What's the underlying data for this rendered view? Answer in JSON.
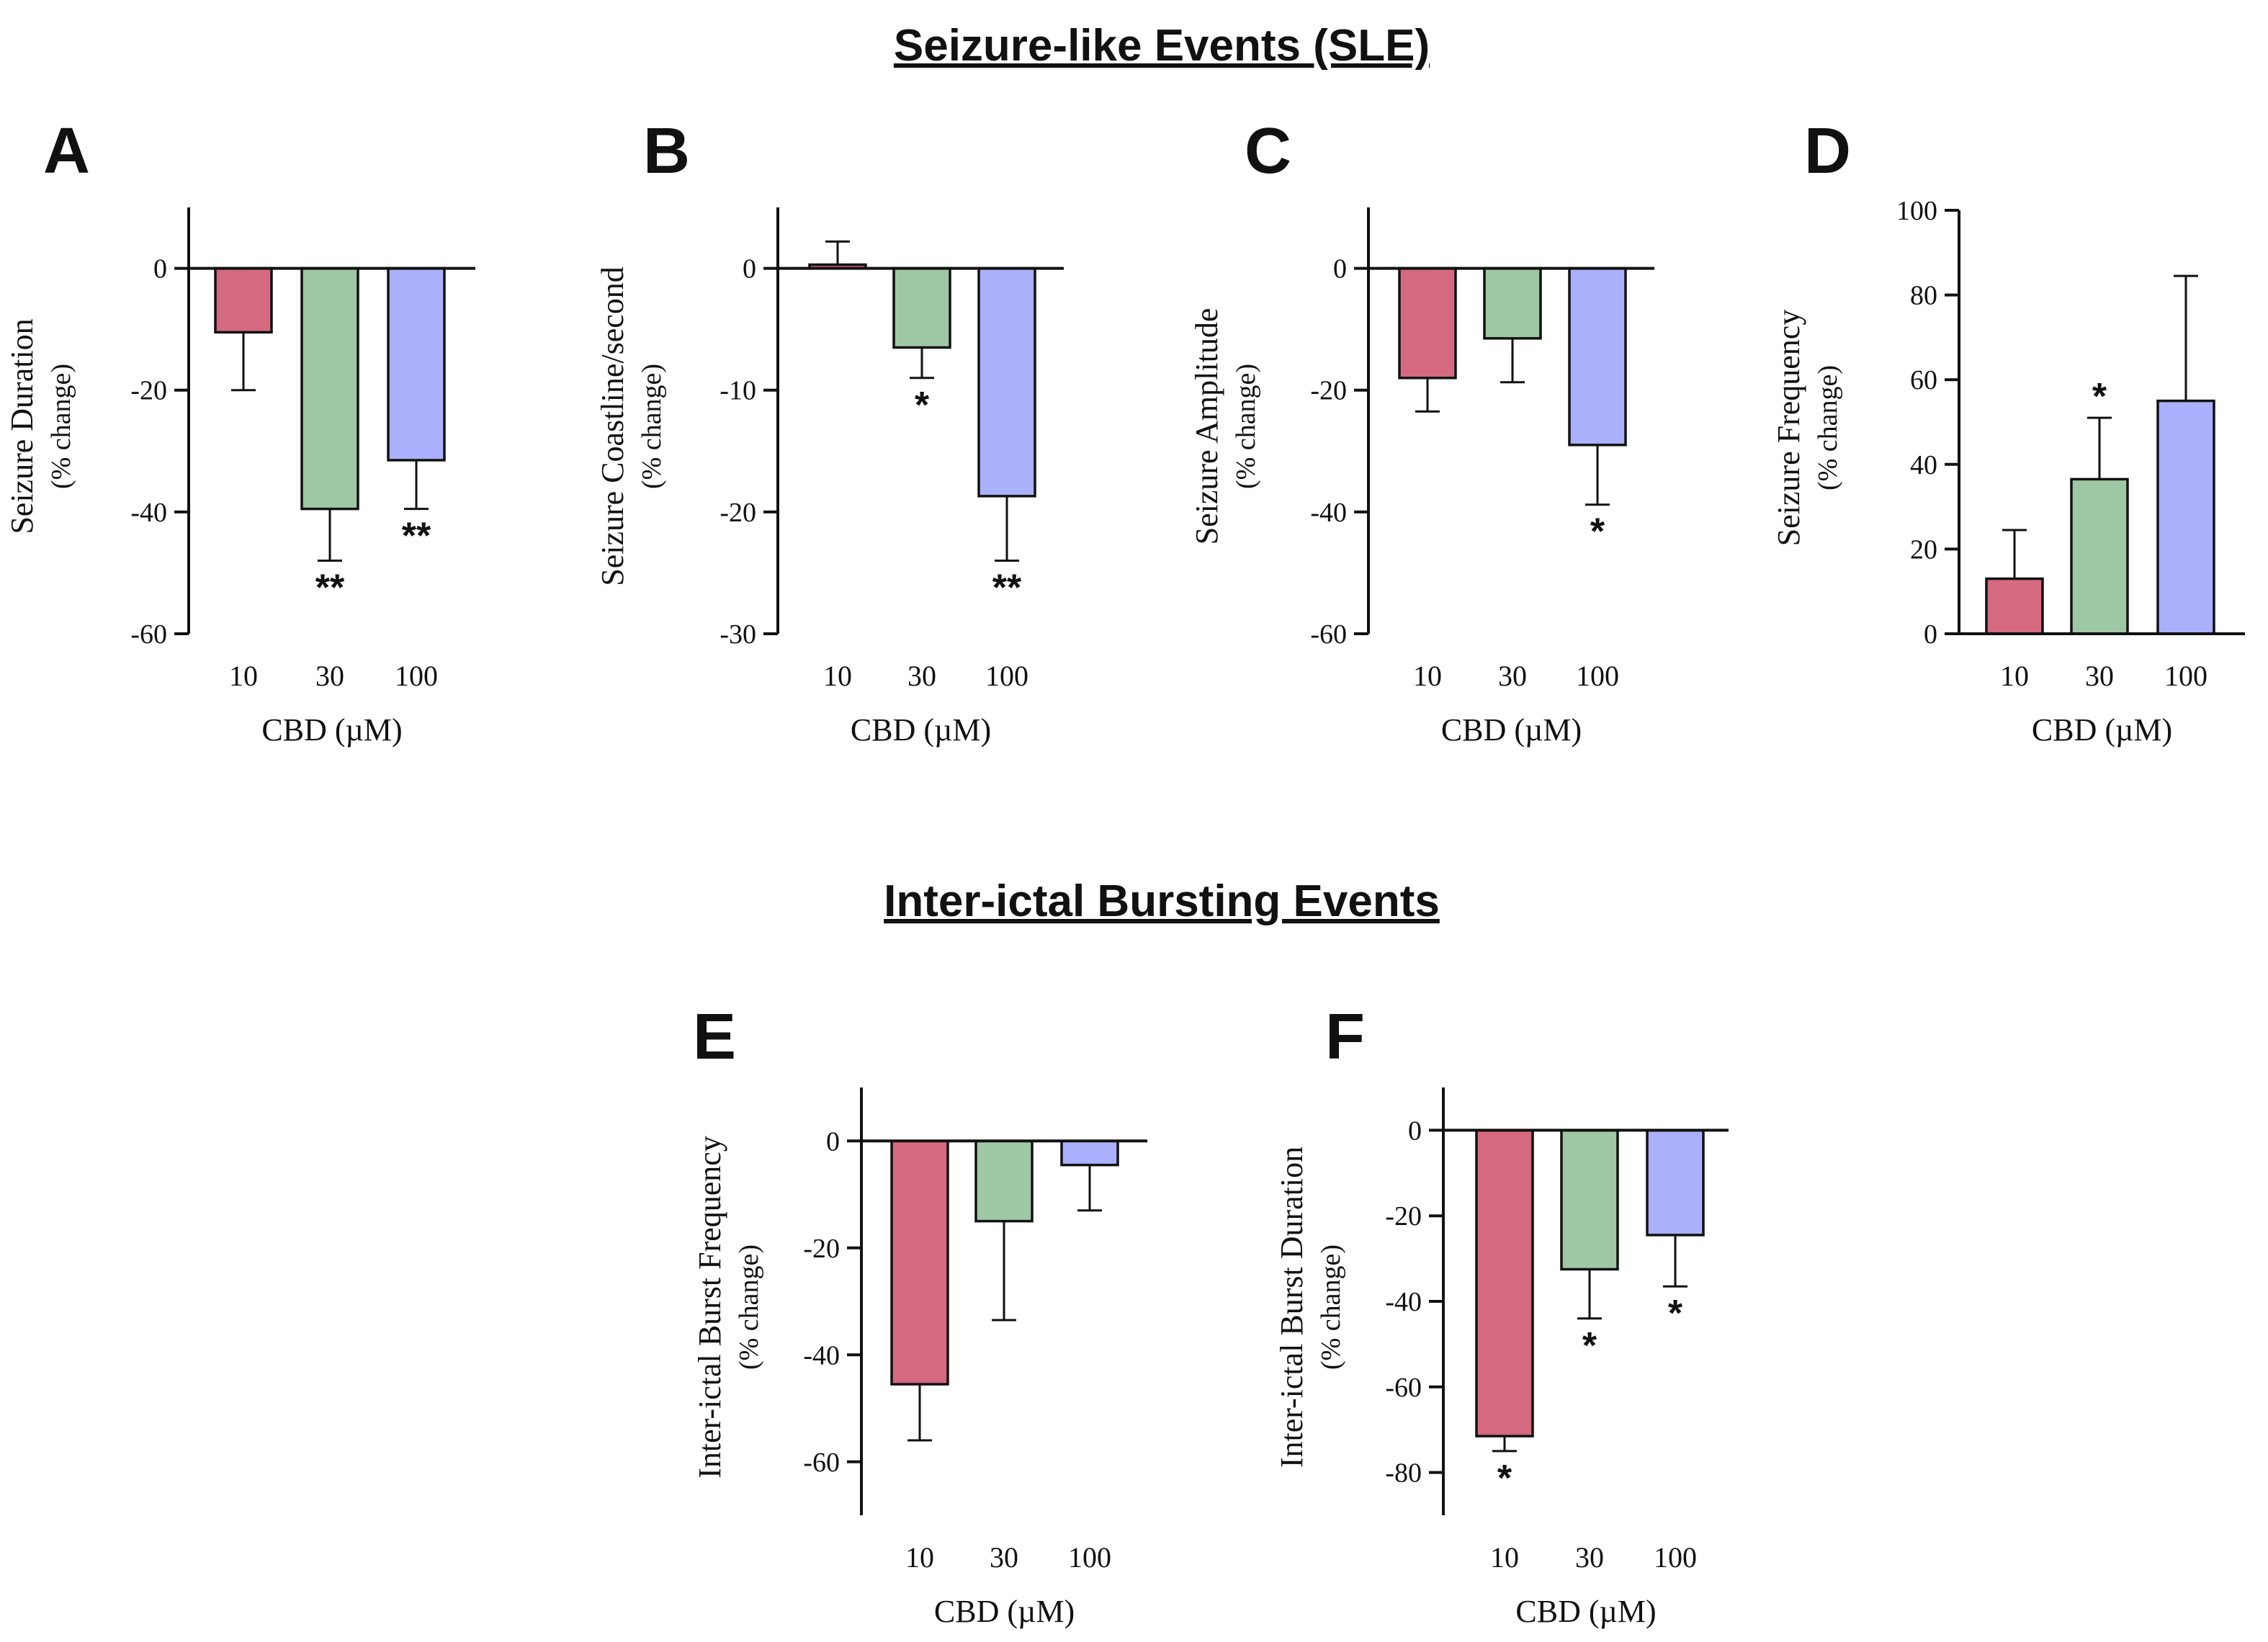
{
  "figure": {
    "section_titles": {
      "sle": "Seizure-like Events (SLE)",
      "interictal": "Inter-ictal Bursting Events"
    },
    "colors": {
      "10": "#d4697f",
      "30": "#9ec8a4",
      "100": "#aab0fb",
      "axis": "#111111"
    }
  },
  "chart_data": [
    {
      "panel": "A",
      "type": "bar",
      "section": "sle",
      "ylabel": "Seizure Duration",
      "ylabel_sub": "(% change)",
      "xlabel": "CBD (µM)",
      "categories": [
        "10",
        "30",
        "100"
      ],
      "values": [
        -10.5,
        -39.5,
        -31.5
      ],
      "errors": [
        9.5,
        8.5,
        8
      ],
      "significance": [
        "",
        "**",
        "**"
      ],
      "ylim": [
        -60,
        10
      ],
      "yticks": [
        0,
        -20,
        -40,
        -60
      ],
      "ytick_labels": [
        "0",
        "-20",
        "-40",
        "-60"
      ]
    },
    {
      "panel": "B",
      "type": "bar",
      "section": "sle",
      "ylabel": "Seizure Coastline/second",
      "ylabel_sub": "(% change)",
      "xlabel": "CBD (µM)",
      "categories": [
        "10",
        "30",
        "100"
      ],
      "values": [
        0.3,
        -6.5,
        -18.7
      ],
      "errors": [
        1.9,
        2.5,
        5.3
      ],
      "significance": [
        "",
        "*",
        "**"
      ],
      "ylim": [
        -30,
        5
      ],
      "yticks": [
        0,
        -10,
        -20,
        -30
      ],
      "ytick_labels": [
        "0",
        "-10",
        "-20",
        "-30"
      ]
    },
    {
      "panel": "C",
      "type": "bar",
      "section": "sle",
      "ylabel": "Seizure Amplitude",
      "ylabel_sub": "(% change)",
      "xlabel": "CBD (µM)",
      "categories": [
        "10",
        "30",
        "100"
      ],
      "values": [
        -18,
        -11.5,
        -29
      ],
      "errors": [
        5.5,
        7.2,
        9.8
      ],
      "significance": [
        "",
        "",
        "*"
      ],
      "ylim": [
        -60,
        10
      ],
      "yticks": [
        0,
        -20,
        -40,
        -60
      ],
      "ytick_labels": [
        "0",
        "-20",
        "-40",
        "-60"
      ]
    },
    {
      "panel": "D",
      "type": "bar",
      "section": "sle",
      "ylabel": "Seizure Frequency",
      "ylabel_sub": "(% change)",
      "xlabel": "CBD (µM)",
      "categories": [
        "10",
        "30",
        "100"
      ],
      "values": [
        13,
        36.5,
        55
      ],
      "errors": [
        11.5,
        14.5,
        29.5
      ],
      "significance": [
        "",
        "*",
        ""
      ],
      "ylim": [
        0,
        100
      ],
      "yticks": [
        0,
        20,
        40,
        60,
        80,
        100
      ],
      "ytick_labels": [
        "0",
        "20",
        "40",
        "60",
        "80",
        "100"
      ]
    },
    {
      "panel": "E",
      "type": "bar",
      "section": "interictal",
      "ylabel": "Inter-ictal Burst Frequency",
      "ylabel_sub": "(% change)",
      "xlabel": "CBD (µM)",
      "categories": [
        "10",
        "30",
        "100"
      ],
      "values": [
        -45.5,
        -15,
        -4.5
      ],
      "errors": [
        10.5,
        18.5,
        8.5
      ],
      "significance": [
        "",
        "",
        ""
      ],
      "ylim": [
        -70,
        10
      ],
      "yticks": [
        0,
        -20,
        -40,
        -60
      ],
      "ytick_labels": [
        "0",
        "-20",
        "-40",
        "-60"
      ]
    },
    {
      "panel": "F",
      "type": "bar",
      "section": "interictal",
      "ylabel": "Inter-ictal Burst Duration",
      "ylabel_sub": "(% change)",
      "xlabel": "CBD (µM)",
      "categories": [
        "10",
        "30",
        "100"
      ],
      "values": [
        -71.5,
        -32.5,
        -24.5
      ],
      "errors": [
        3.5,
        11.5,
        12
      ],
      "significance": [
        "*",
        "*",
        "*"
      ],
      "ylim": [
        -90,
        10
      ],
      "yticks": [
        0,
        -20,
        -40,
        -60,
        -80
      ],
      "ytick_labels": [
        "0",
        "-20",
        "-40",
        "-60",
        "-80"
      ]
    }
  ]
}
